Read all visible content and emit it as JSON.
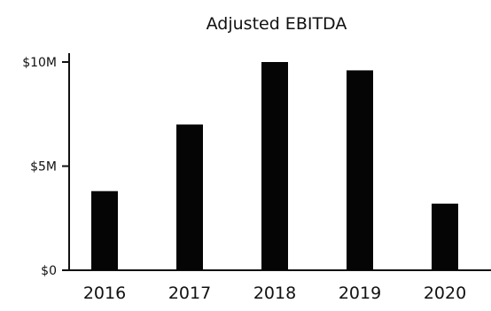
{
  "chart_data": {
    "type": "bar",
    "title": "Adjusted EBITDA",
    "xlabel": "",
    "ylabel": "",
    "categories": [
      "2016",
      "2017",
      "2018",
      "2019",
      "2020"
    ],
    "values": [
      3.8,
      7.0,
      10.0,
      9.6,
      3.2
    ],
    "ylim": [
      0,
      10
    ],
    "yticks": [
      0,
      5,
      10
    ],
    "ytick_labels": [
      "$0",
      "$5M",
      "$10M"
    ],
    "bar_color": "#050505",
    "grid": false,
    "legend": "none"
  }
}
